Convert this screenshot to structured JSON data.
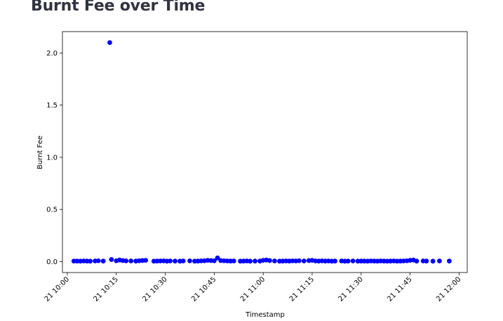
{
  "page": {
    "title": "Burnt Fee over Time"
  },
  "chart_data": {
    "type": "scatter",
    "title": "",
    "xlabel": "Timestamp",
    "ylabel": "Burnt Fee",
    "x_type": "time",
    "xlim": [
      "21 09:58:30",
      "21 12:02:30"
    ],
    "ylim": [
      -0.105,
      2.205
    ],
    "x_ticks": [
      "21 10:00",
      "21 10:15",
      "21 10:30",
      "21 10:45",
      "21 11:00",
      "21 11:15",
      "21 11:30",
      "21 11:45",
      "21 12:00"
    ],
    "y_ticks": [
      "0.0",
      "0.5",
      "1.0",
      "1.5",
      "2.0"
    ],
    "grid": false,
    "color": "#0000ff",
    "series": [
      {
        "name": "",
        "x": [
          "21 10:02:00",
          "21 10:03:00",
          "21 10:04:00",
          "21 10:05:00",
          "21 10:06:00",
          "21 10:07:00",
          "21 10:08:30",
          "21 10:09:30",
          "21 10:11:00",
          "21 10:13:00",
          "21 10:13:30",
          "21 10:15:00",
          "21 10:16:00",
          "21 10:17:00",
          "21 10:18:00",
          "21 10:19:30",
          "21 10:21:00",
          "21 10:22:00",
          "21 10:23:00",
          "21 10:24:00",
          "21 10:26:30",
          "21 10:27:30",
          "21 10:28:30",
          "21 10:29:30",
          "21 10:30:30",
          "21 10:31:30",
          "21 10:33:00",
          "21 10:34:30",
          "21 10:35:30",
          "21 10:37:30",
          "21 10:39:00",
          "21 10:40:00",
          "21 10:41:00",
          "21 10:42:00",
          "21 10:43:00",
          "21 10:44:00",
          "21 10:45:00",
          "21 10:46:00",
          "21 10:47:00",
          "21 10:48:00",
          "21 10:49:00",
          "21 10:50:00",
          "21 10:51:00",
          "21 10:53:00",
          "21 10:54:00",
          "21 10:55:00",
          "21 10:56:00",
          "21 10:57:30",
          "21 10:59:00",
          "21 11:00:00",
          "21 11:01:00",
          "21 11:02:00",
          "21 11:03:30",
          "21 11:05:00",
          "21 11:06:00",
          "21 11:07:00",
          "21 11:08:00",
          "21 11:09:00",
          "21 11:10:00",
          "21 11:11:00",
          "21 11:12:30",
          "21 11:14:00",
          "21 11:15:00",
          "21 11:16:00",
          "21 11:17:00",
          "21 11:18:00",
          "21 11:19:00",
          "21 11:20:00",
          "21 11:21:00",
          "21 11:22:00",
          "21 11:24:00",
          "21 11:25:00",
          "21 11:26:00",
          "21 11:27:30",
          "21 11:29:00",
          "21 11:30:00",
          "21 11:31:00",
          "21 11:32:00",
          "21 11:33:00",
          "21 11:34:00",
          "21 11:35:00",
          "21 11:36:00",
          "21 11:37:00",
          "21 11:38:00",
          "21 11:39:00",
          "21 11:40:00",
          "21 11:41:00",
          "21 11:42:00",
          "21 11:43:00",
          "21 11:44:00",
          "21 11:45:00",
          "21 11:46:00",
          "21 11:47:00",
          "21 11:49:00",
          "21 11:50:00",
          "21 11:52:00",
          "21 11:54:00",
          "21 11:57:00"
        ],
        "y": [
          0.005,
          0.005,
          0.004,
          0.006,
          0.005,
          0.004,
          0.006,
          0.008,
          0.005,
          2.1,
          0.02,
          0.008,
          0.015,
          0.01,
          0.007,
          0.006,
          0.005,
          0.008,
          0.01,
          0.012,
          0.004,
          0.005,
          0.006,
          0.007,
          0.004,
          0.006,
          0.005,
          0.004,
          0.006,
          0.007,
          0.004,
          0.005,
          0.007,
          0.008,
          0.012,
          0.01,
          0.008,
          0.035,
          0.01,
          0.008,
          0.006,
          0.005,
          0.006,
          0.004,
          0.005,
          0.006,
          0.004,
          0.005,
          0.005,
          0.012,
          0.015,
          0.01,
          0.006,
          0.004,
          0.005,
          0.006,
          0.005,
          0.007,
          0.006,
          0.008,
          0.006,
          0.01,
          0.012,
          0.006,
          0.005,
          0.007,
          0.005,
          0.006,
          0.004,
          0.005,
          0.006,
          0.004,
          0.005,
          0.006,
          0.004,
          0.005,
          0.005,
          0.004,
          0.006,
          0.005,
          0.004,
          0.006,
          0.005,
          0.004,
          0.005,
          0.006,
          0.004,
          0.005,
          0.006,
          0.008,
          0.012,
          0.015,
          0.005,
          0.006,
          0.005,
          0.004,
          0.006,
          0.005
        ]
      }
    ]
  }
}
